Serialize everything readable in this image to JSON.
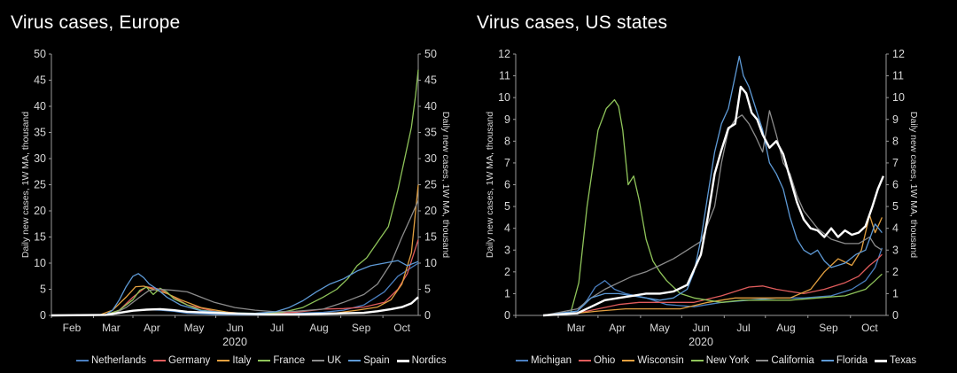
{
  "chart_data": [
    {
      "type": "line",
      "title": "Virus cases, Europe",
      "xlabel": "2020",
      "ylabel": "Daily new cases, 1W MA, thousand",
      "y2label": "Daily new cases, 1W MA, thousand",
      "ylim": [
        0,
        50
      ],
      "yticks": [
        0,
        5,
        10,
        15,
        20,
        25,
        30,
        35,
        40,
        45,
        50
      ],
      "xlim": [
        0,
        258
      ],
      "xticks": [
        {
          "label": "Feb",
          "pos": 15
        },
        {
          "label": "Mar",
          "pos": 44
        },
        {
          "label": "Apr",
          "pos": 74
        },
        {
          "label": "May",
          "pos": 105
        },
        {
          "label": "Jun",
          "pos": 135
        },
        {
          "label": "Jul",
          "pos": 166
        },
        {
          "label": "Aug",
          "pos": 197
        },
        {
          "label": "Sep",
          "pos": 228
        },
        {
          "label": "Oct",
          "pos": 258
        }
      ],
      "grid": false,
      "legend": "bottom",
      "series": [
        {
          "name": "Netherlands",
          "color": "#4a7fc0",
          "width": 1.3,
          "x": [
            0,
            40,
            50,
            60,
            70,
            80,
            90,
            100,
            120,
            140,
            160,
            180,
            200,
            215,
            230,
            245,
            255,
            270
          ],
          "y": [
            0,
            0.05,
            0.4,
            0.9,
            1.1,
            1.0,
            0.8,
            0.4,
            0.2,
            0.1,
            0.1,
            0.4,
            0.6,
            1.0,
            2.0,
            4.5,
            7.5,
            10
          ]
        },
        {
          "name": "Germany",
          "color": "#e05c5c",
          "width": 1.3,
          "x": [
            0,
            40,
            50,
            60,
            70,
            80,
            90,
            100,
            120,
            140,
            160,
            180,
            200,
            215,
            230,
            245,
            255,
            262,
            270
          ],
          "y": [
            0,
            0.1,
            1.0,
            3.5,
            5.5,
            5.0,
            3.5,
            2.0,
            0.8,
            0.4,
            0.4,
            0.6,
            1.2,
            1.3,
            1.6,
            2.5,
            5.0,
            8,
            14.5
          ]
        },
        {
          "name": "Italy",
          "color": "#e3a040",
          "width": 1.3,
          "x": [
            0,
            35,
            45,
            55,
            62,
            68,
            75,
            85,
            95,
            110,
            130,
            150,
            170,
            190,
            210,
            225,
            240,
            250,
            258,
            265,
            270
          ],
          "y": [
            0,
            0.05,
            1.0,
            3.5,
            5.5,
            5.6,
            5.0,
            4.2,
            3.0,
            1.5,
            0.6,
            0.3,
            0.2,
            0.3,
            0.5,
            1.0,
            1.6,
            3.0,
            6.0,
            12,
            25
          ]
        },
        {
          "name": "France",
          "color": "#8fc45a",
          "width": 1.3,
          "x": [
            0,
            40,
            50,
            60,
            65,
            70,
            75,
            80,
            85,
            90,
            100,
            110,
            130,
            150,
            170,
            185,
            200,
            210,
            218,
            225,
            232,
            240,
            248,
            255,
            260,
            265,
            268,
            270
          ],
          "y": [
            0,
            0.1,
            1.0,
            3.0,
            4.8,
            5.4,
            4.0,
            5.2,
            4.5,
            3.2,
            2.0,
            1.0,
            0.5,
            0.4,
            0.6,
            1.5,
            3.5,
            5.0,
            7.0,
            9.5,
            11.0,
            14,
            17,
            24,
            30,
            36,
            42,
            47
          ]
        },
        {
          "name": "UK",
          "color": "#8c8c8c",
          "width": 1.3,
          "x": [
            0,
            45,
            55,
            65,
            72,
            80,
            90,
            100,
            110,
            120,
            135,
            150,
            165,
            180,
            200,
            215,
            230,
            240,
            250,
            258,
            265,
            270
          ],
          "y": [
            0,
            0.2,
            1.5,
            3.5,
            4.8,
            5.0,
            4.8,
            4.5,
            3.5,
            2.5,
            1.5,
            1.0,
            0.7,
            0.8,
            1.2,
            2.5,
            4.0,
            6.0,
            10,
            15,
            19,
            22
          ]
        },
        {
          "name": "Spain",
          "color": "#5e9ad6",
          "width": 1.3,
          "x": [
            0,
            40,
            45,
            50,
            55,
            60,
            64,
            68,
            72,
            78,
            85,
            95,
            110,
            130,
            150,
            165,
            175,
            185,
            195,
            205,
            215,
            225,
            235,
            245,
            255,
            262,
            270
          ],
          "y": [
            0,
            0.1,
            1.0,
            3.0,
            5.5,
            7.5,
            8.0,
            7.2,
            6.0,
            5.0,
            3.5,
            2.0,
            0.9,
            0.5,
            0.4,
            0.7,
            1.5,
            2.8,
            4.5,
            6.0,
            7.0,
            8.5,
            9.5,
            10.0,
            10.5,
            9.5,
            10.3
          ]
        },
        {
          "name": "Nordics",
          "color": "#ffffff",
          "width": 2.4,
          "x": [
            0,
            40,
            50,
            60,
            70,
            80,
            90,
            100,
            120,
            140,
            160,
            180,
            200,
            215,
            230,
            240,
            250,
            258,
            265,
            270
          ],
          "y": [
            0,
            0.1,
            0.5,
            0.9,
            1.1,
            1.2,
            1.0,
            0.7,
            0.5,
            0.3,
            0.2,
            0.2,
            0.3,
            0.4,
            0.5,
            0.8,
            1.2,
            1.6,
            2.3,
            3.5
          ]
        }
      ]
    },
    {
      "type": "line",
      "title": "Virus cases, US states",
      "xlabel": "2020",
      "ylabel": "Daily new cases, 1W MA, thousand",
      "y2label": "Daily new cases, 1W MA, thousand",
      "ylim": [
        0,
        12
      ],
      "yticks": [
        0,
        1,
        2,
        3,
        4,
        5,
        6,
        7,
        8,
        9,
        10,
        11,
        12
      ],
      "xlim": [
        0,
        258
      ],
      "xticks": [
        {
          "label": "Mar",
          "pos": 44
        },
        {
          "label": "Apr",
          "pos": 74
        },
        {
          "label": "May",
          "pos": 105
        },
        {
          "label": "Jun",
          "pos": 135
        },
        {
          "label": "Jul",
          "pos": 166
        },
        {
          "label": "Aug",
          "pos": 197
        },
        {
          "label": "Sep",
          "pos": 228
        },
        {
          "label": "Oct",
          "pos": 258
        }
      ],
      "grid": false,
      "legend": "bottom",
      "series": [
        {
          "name": "Michigan",
          "color": "#4a7fc0",
          "width": 1.3,
          "x": [
            20,
            45,
            52,
            58,
            65,
            72,
            80,
            95,
            110,
            130,
            150,
            170,
            190,
            210,
            230,
            245,
            255,
            262,
            267
          ],
          "y": [
            0,
            0.2,
            0.7,
            1.3,
            1.6,
            1.2,
            1.0,
            0.8,
            0.5,
            0.4,
            0.6,
            0.7,
            0.8,
            0.8,
            0.9,
            1.2,
            1.6,
            2.2,
            3.1
          ]
        },
        {
          "name": "Ohio",
          "color": "#e05c5c",
          "width": 1.3,
          "x": [
            20,
            45,
            60,
            75,
            90,
            110,
            130,
            150,
            170,
            180,
            190,
            200,
            210,
            225,
            240,
            250,
            258,
            264,
            267
          ],
          "y": [
            0,
            0.1,
            0.3,
            0.5,
            0.6,
            0.6,
            0.6,
            0.9,
            1.3,
            1.35,
            1.2,
            1.1,
            1.0,
            1.2,
            1.5,
            1.8,
            2.3,
            2.6,
            2.8
          ]
        },
        {
          "name": "Wisconsin",
          "color": "#e3a040",
          "width": 1.3,
          "x": [
            20,
            45,
            60,
            80,
            100,
            120,
            140,
            160,
            180,
            200,
            215,
            225,
            235,
            245,
            252,
            258,
            262,
            267
          ],
          "y": [
            0,
            0.1,
            0.2,
            0.3,
            0.3,
            0.3,
            0.6,
            0.8,
            0.8,
            0.8,
            1.2,
            2.0,
            2.6,
            2.3,
            3.0,
            4.6,
            3.8,
            4.5
          ]
        },
        {
          "name": "New York",
          "color": "#8fc45a",
          "width": 1.3,
          "x": [
            20,
            40,
            46,
            52,
            60,
            66,
            72,
            75,
            78,
            82,
            86,
            90,
            95,
            100,
            105,
            110,
            120,
            130,
            140,
            150,
            165,
            180,
            200,
            220,
            240,
            255,
            262,
            267
          ],
          "y": [
            0,
            0.1,
            1.5,
            5.0,
            8.5,
            9.5,
            9.9,
            9.6,
            8.5,
            6.0,
            6.4,
            5.3,
            3.5,
            2.5,
            2.0,
            1.6,
            1.0,
            0.8,
            0.7,
            0.6,
            0.7,
            0.7,
            0.7,
            0.8,
            0.9,
            1.2,
            1.6,
            1.9
          ]
        },
        {
          "name": "California",
          "color": "#8c8c8c",
          "width": 1.3,
          "x": [
            20,
            45,
            55,
            65,
            75,
            85,
            95,
            105,
            115,
            125,
            135,
            145,
            150,
            155,
            160,
            165,
            170,
            175,
            180,
            185,
            190,
            195,
            200,
            205,
            210,
            220,
            230,
            240,
            250,
            258,
            262,
            267
          ],
          "y": [
            0,
            0.3,
            0.8,
            1.2,
            1.5,
            1.8,
            2.0,
            2.3,
            2.6,
            3.0,
            3.4,
            5.0,
            7.0,
            8.5,
            9.0,
            9.2,
            8.8,
            8.2,
            7.5,
            9.4,
            8.3,
            7.0,
            6.5,
            5.5,
            4.8,
            4.0,
            3.5,
            3.3,
            3.3,
            3.6,
            3.2,
            3.0
          ]
        },
        {
          "name": "Florida",
          "color": "#5e9ad6",
          "width": 1.3,
          "x": [
            20,
            45,
            55,
            65,
            75,
            85,
            95,
            105,
            115,
            125,
            130,
            135,
            140,
            145,
            150,
            155,
            160,
            163,
            166,
            170,
            175,
            180,
            185,
            190,
            195,
            200,
            205,
            210,
            215,
            220,
            225,
            230,
            240,
            248,
            255,
            262,
            267
          ],
          "y": [
            0,
            0.2,
            0.8,
            1.0,
            1.0,
            0.9,
            0.8,
            0.7,
            0.8,
            1.2,
            2.0,
            3.5,
            5.5,
            7.5,
            8.8,
            9.5,
            11.0,
            11.9,
            11.0,
            10.5,
            9.5,
            8.5,
            7.0,
            6.5,
            5.8,
            4.5,
            3.5,
            3.0,
            2.8,
            3.0,
            2.5,
            2.2,
            2.4,
            2.8,
            3.0,
            4.2,
            3.8
          ]
        },
        {
          "name": "Texas",
          "color": "#ffffff",
          "width": 2.4,
          "x": [
            20,
            45,
            55,
            65,
            75,
            85,
            95,
            105,
            115,
            125,
            135,
            140,
            145,
            150,
            155,
            160,
            164,
            168,
            172,
            176,
            180,
            185,
            190,
            195,
            200,
            205,
            210,
            215,
            220,
            225,
            230,
            235,
            240,
            245,
            250,
            255,
            260,
            264,
            268
          ],
          "y": [
            0,
            0.1,
            0.4,
            0.7,
            0.8,
            0.9,
            1.0,
            1.0,
            1.1,
            1.4,
            2.8,
            4.5,
            6.5,
            7.6,
            8.6,
            8.8,
            10.5,
            10.2,
            9.3,
            9.0,
            8.3,
            7.7,
            8.0,
            7.4,
            6.3,
            5.2,
            4.4,
            4.0,
            3.9,
            3.6,
            4.0,
            3.6,
            3.9,
            3.7,
            3.8,
            4.1,
            5.0,
            5.8,
            6.4
          ]
        }
      ]
    }
  ]
}
